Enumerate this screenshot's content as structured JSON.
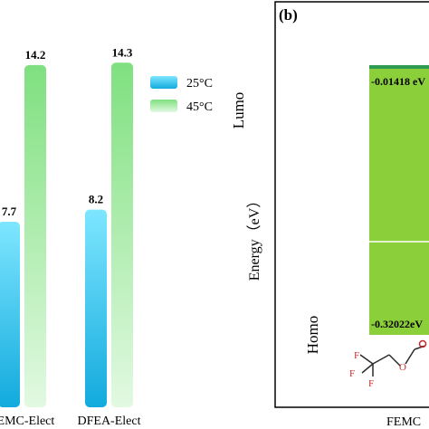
{
  "chart_data": [
    {
      "type": "bar",
      "panel_label": "",
      "categories": [
        "FEMC-Elect",
        "DFEA-Elect"
      ],
      "category_labels_visible": [
        "FEMC-Elect",
        "DFEA-Elect"
      ],
      "series": [
        {
          "name": "25°C",
          "values": [
            7.7,
            8.2
          ],
          "value_labels": [
            "7.7",
            "8.2"
          ],
          "color_top": "#7ee6ff",
          "color_bottom": "#12aadd"
        },
        {
          "name": "45°C",
          "values": [
            14.2,
            14.3
          ],
          "value_labels": [
            "14.2",
            "14.3"
          ],
          "color_top": "#7fe07f",
          "color_bottom": "#e2f9e2"
        }
      ],
      "ylim": [
        0,
        16
      ],
      "legend_position": "top-right",
      "grid": false
    },
    {
      "type": "bar",
      "panel_label": "(b)",
      "ylabel": "Energy（eV）",
      "level_labels": {
        "top": "Lumo",
        "bottom": "Homo"
      },
      "categories": [
        "FEMC"
      ],
      "category_label_visible": "FEMC",
      "lumo_value": -0.01418,
      "lumo_label": "-0.01418 eV",
      "homo_value": -0.32022,
      "homo_label": "-0.32022eV",
      "bar_color": "#8bcf3a",
      "bar_edge_color": "#2e9a52",
      "grid": false
    }
  ]
}
